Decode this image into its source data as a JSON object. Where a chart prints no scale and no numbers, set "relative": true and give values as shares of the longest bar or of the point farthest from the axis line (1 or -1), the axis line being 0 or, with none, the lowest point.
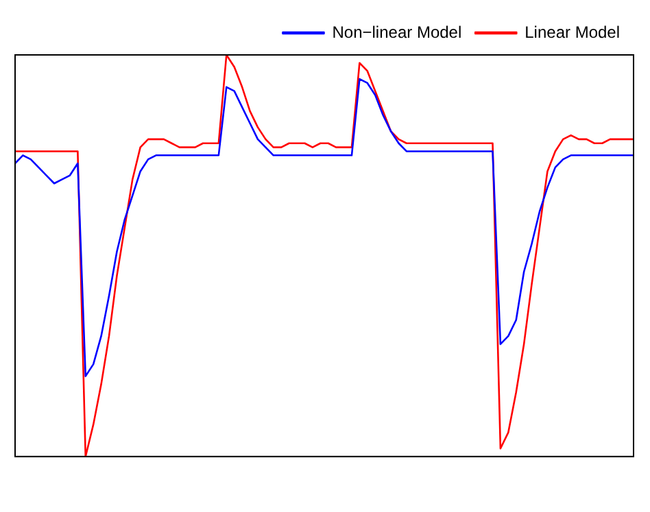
{
  "chart_data": {
    "type": "line",
    "relative": true,
    "grid": false,
    "legend": "top right",
    "marker": "none",
    "line_style": "solid",
    "categories": [
      null,
      null,
      null,
      null,
      null,
      null,
      null,
      null,
      null,
      null,
      null,
      null,
      null,
      null,
      null,
      null,
      null,
      null,
      null,
      null,
      null,
      null,
      null,
      null,
      null,
      null,
      null,
      null,
      null,
      null,
      null,
      null,
      null,
      null,
      null,
      null,
      null,
      null,
      null,
      null,
      null,
      null,
      null,
      null,
      null,
      null,
      null,
      null,
      null,
      null,
      null,
      null,
      null,
      null,
      null,
      null,
      null,
      null,
      null,
      null,
      null,
      null,
      null,
      null,
      null,
      null,
      null,
      null,
      null,
      null,
      null,
      null,
      null,
      null,
      null,
      null,
      null,
      null,
      null,
      null
    ],
    "series": [
      {
        "name": "Non−linear Model",
        "color": "#0000ff",
        "values": [
          0.73,
          0.75,
          0.74,
          0.72,
          0.7,
          0.68,
          0.69,
          0.7,
          0.73,
          0.2,
          0.23,
          0.3,
          0.4,
          0.51,
          0.59,
          0.65,
          0.71,
          0.74,
          0.75,
          0.75,
          0.75,
          0.75,
          0.75,
          0.75,
          0.75,
          0.75,
          0.75,
          0.92,
          0.91,
          0.87,
          0.83,
          0.79,
          0.77,
          0.75,
          0.75,
          0.75,
          0.75,
          0.75,
          0.75,
          0.75,
          0.75,
          0.75,
          0.75,
          0.75,
          0.94,
          0.93,
          0.9,
          0.85,
          0.81,
          0.78,
          0.76,
          0.76,
          0.76,
          0.76,
          0.76,
          0.76,
          0.76,
          0.76,
          0.76,
          0.76,
          0.76,
          0.76,
          0.28,
          0.3,
          0.34,
          0.46,
          0.53,
          0.61,
          0.67,
          0.72,
          0.74,
          0.75,
          0.75,
          0.75,
          0.75,
          0.75,
          0.75,
          0.75,
          0.75,
          0.75
        ]
      },
      {
        "name": "Linear Model",
        "color": "#ff0000",
        "values": [
          0.76,
          0.76,
          0.76,
          0.76,
          0.76,
          0.76,
          0.76,
          0.76,
          0.76,
          0,
          0.08,
          0.18,
          0.3,
          0.45,
          0.57,
          0.69,
          0.77,
          0.79,
          0.79,
          0.79,
          0.78,
          0.77,
          0.77,
          0.77,
          0.78,
          0.78,
          0.78,
          1.0,
          0.97,
          0.92,
          0.86,
          0.82,
          0.79,
          0.77,
          0.77,
          0.78,
          0.78,
          0.78,
          0.77,
          0.78,
          0.78,
          0.77,
          0.77,
          0.77,
          0.98,
          0.96,
          0.91,
          0.86,
          0.81,
          0.79,
          0.78,
          0.78,
          0.78,
          0.78,
          0.78,
          0.78,
          0.78,
          0.78,
          0.78,
          0.78,
          0.78,
          0.78,
          0.02,
          0.06,
          0.16,
          0.28,
          0.43,
          0.57,
          0.71,
          0.76,
          0.79,
          0.8,
          0.79,
          0.79,
          0.78,
          0.78,
          0.79,
          0.79,
          0.79,
          0.79
        ]
      }
    ]
  }
}
